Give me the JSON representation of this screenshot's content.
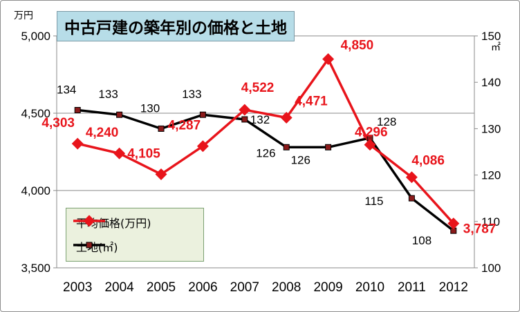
{
  "chart_data": {
    "type": "line",
    "title": "中古戸建の築年別の価格と土地",
    "categories": [
      "2003",
      "2004",
      "2005",
      "2006",
      "2007",
      "2008",
      "2009",
      "2010",
      "2011",
      "2012"
    ],
    "y_left": {
      "unit": "万円",
      "range": [
        3500,
        5000
      ],
      "ticks": [
        "3,500",
        "4,000",
        "4,500",
        "5,000"
      ]
    },
    "y_right": {
      "unit": "㎡",
      "range": [
        100,
        150
      ],
      "ticks": [
        "100",
        "110",
        "120",
        "130",
        "140",
        "150"
      ]
    },
    "series": [
      {
        "name": "平均価格(万円)",
        "axis": "left",
        "color": "#e8141b",
        "values": [
          4303,
          4240,
          4105,
          4287,
          4522,
          4471,
          4850,
          4296,
          4086,
          3787
        ],
        "labels": [
          "4,303",
          "4,240",
          "4,105",
          "4,287",
          "4,522",
          "4,471",
          "4,850",
          "4,296",
          "4,086",
          "3,787"
        ]
      },
      {
        "name": "土地(㎡)",
        "axis": "right",
        "color": "#000000",
        "values": [
          134,
          133,
          130,
          133,
          132,
          126,
          126,
          128,
          115,
          108
        ],
        "labels": [
          "134",
          "133",
          "130",
          "133",
          "132",
          "126",
          "126",
          "128",
          "115",
          "108"
        ]
      }
    ],
    "grid": true,
    "legend": "bottom-left"
  }
}
